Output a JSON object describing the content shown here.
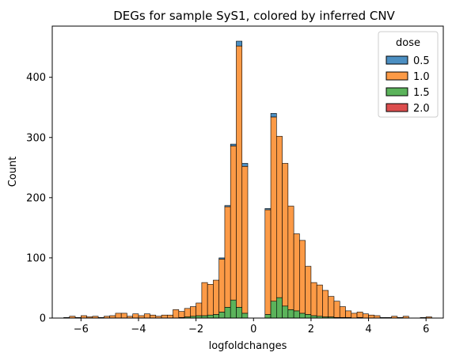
{
  "chart_data": {
    "type": "bar",
    "stacked": true,
    "title": "DEGs for sample SyS1, colored by inferred CNV",
    "xlabel": "logfoldchanges",
    "ylabel": "Count",
    "xlim": [
      -7,
      6.6
    ],
    "ylim": [
      0,
      485
    ],
    "xticks": [
      -6,
      -4,
      -2,
      0,
      2,
      4,
      6
    ],
    "yticks": [
      0,
      100,
      200,
      300,
      400
    ],
    "bin_width": 0.2,
    "legend": {
      "title": "dose",
      "position": "top-right",
      "entries": [
        "0.5",
        "1.0",
        "1.5",
        "2.0"
      ]
    },
    "colors": {
      "0.5": "#4c8fc2",
      "1.0": "#fc9a46",
      "1.5": "#5bb35b",
      "2.0": "#dc4e4e"
    },
    "x": [
      -6.6,
      -6.4,
      -6.2,
      -6.0,
      -5.8,
      -5.6,
      -5.4,
      -5.2,
      -5.0,
      -4.8,
      -4.6,
      -4.4,
      -4.2,
      -4.0,
      -3.8,
      -3.6,
      -3.4,
      -3.2,
      -3.0,
      -2.8,
      -2.6,
      -2.4,
      -2.2,
      -2.0,
      -1.8,
      -1.6,
      -1.4,
      -1.2,
      -1.0,
      -0.8,
      -0.6,
      -0.4,
      0.4,
      0.6,
      0.8,
      1.0,
      1.2,
      1.4,
      1.6,
      1.8,
      2.0,
      2.2,
      2.4,
      2.6,
      2.8,
      3.0,
      3.2,
      3.4,
      3.6,
      3.8,
      4.0,
      4.2,
      4.4,
      4.6,
      4.8,
      5.0,
      5.2,
      5.4,
      5.6,
      5.8,
      6.0
    ],
    "series": [
      {
        "name": "1.5",
        "values": [
          0,
          0,
          0,
          0,
          0,
          0,
          0,
          0,
          0,
          0,
          0,
          0,
          0,
          0,
          0,
          0,
          0,
          0,
          0,
          0,
          1,
          2,
          3,
          4,
          4,
          5,
          6,
          10,
          18,
          30,
          18,
          8,
          6,
          28,
          34,
          20,
          14,
          12,
          8,
          6,
          4,
          3,
          2,
          2,
          1,
          1,
          1,
          0,
          1,
          0,
          0,
          0,
          0,
          0,
          0,
          0,
          0,
          0,
          0,
          0,
          0
        ]
      },
      {
        "name": "1.0",
        "values": [
          1,
          3,
          1,
          4,
          2,
          3,
          1,
          3,
          4,
          8,
          8,
          3,
          7,
          4,
          7,
          5,
          3,
          5,
          5,
          14,
          10,
          14,
          16,
          21,
          55,
          51,
          57,
          88,
          167,
          256,
          434,
          244,
          174,
          306,
          268,
          237,
          172,
          128,
          121,
          80,
          55,
          52,
          44,
          34,
          27,
          18,
          11,
          8,
          9,
          7,
          5,
          4,
          1,
          1,
          3,
          1,
          3,
          0,
          0,
          1,
          2
        ]
      },
      {
        "name": "0.5",
        "values": [
          0,
          0,
          0,
          0,
          0,
          0,
          0,
          0,
          0,
          0,
          0,
          0,
          0,
          0,
          0,
          0,
          0,
          0,
          0,
          0,
          0,
          0,
          0,
          0,
          0,
          0,
          0,
          2,
          2,
          3,
          8,
          5,
          2,
          6,
          0,
          0,
          0,
          0,
          0,
          0,
          0,
          0,
          0,
          0,
          0,
          0,
          0,
          0,
          0,
          0,
          0,
          0,
          0,
          0,
          0,
          0,
          0,
          0,
          0,
          0,
          0
        ]
      },
      {
        "name": "2.0",
        "values": [
          0,
          0,
          0,
          0,
          0,
          0,
          0,
          0,
          0,
          0,
          0,
          0,
          0,
          0,
          0,
          0,
          0,
          0,
          0,
          0,
          0,
          0,
          0,
          0,
          0,
          0,
          0,
          0,
          0,
          0,
          0,
          0,
          0,
          0,
          0,
          0,
          0,
          0,
          0,
          0,
          0,
          0,
          0,
          0,
          0,
          0,
          0,
          0,
          0,
          0,
          0,
          0,
          0,
          0,
          0,
          0,
          0,
          0,
          0,
          0,
          0
        ]
      }
    ]
  }
}
